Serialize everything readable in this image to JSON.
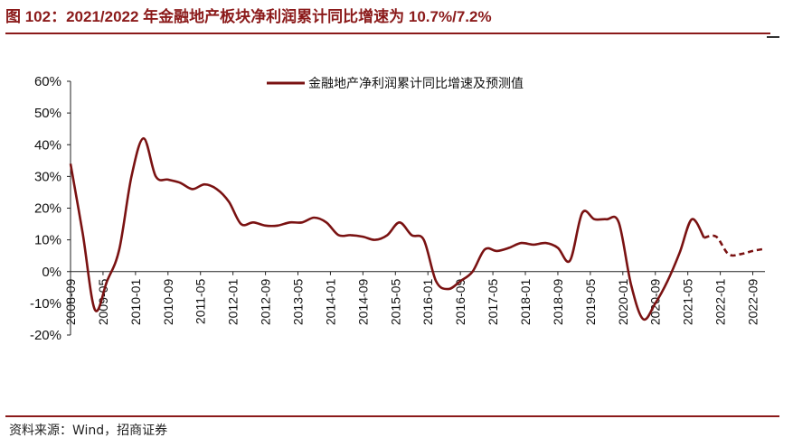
{
  "title": "图 102：2021/2022 年金融地产板块净利润累计同比增速为 10.7%/7.2%",
  "source": "资料来源：Wind，招商证券",
  "colors": {
    "accent": "#8b1a1a",
    "series": "#7a1212"
  },
  "chart_data": {
    "type": "line",
    "title": "",
    "xlabel": "",
    "ylabel": "",
    "ylim": [
      -20,
      60
    ],
    "yticks": [
      "60%",
      "50%",
      "40%",
      "30%",
      "20%",
      "10%",
      "0%",
      "-10%",
      "-20%"
    ],
    "ytick_values": [
      60,
      50,
      40,
      30,
      20,
      10,
      0,
      -10,
      -20
    ],
    "xticks": [
      "2008-09",
      "2009-05",
      "2010-01",
      "2010-09",
      "2011-05",
      "2012-01",
      "2012-09",
      "2013-05",
      "2014-01",
      "2014-09",
      "2015-05",
      "2016-01",
      "2016-09",
      "2017-05",
      "2018-01",
      "2018-09",
      "2019-05",
      "2020-01",
      "2020-09",
      "2021-05",
      "2022-01",
      "2022-09"
    ],
    "legend": "top-center",
    "grid": false,
    "series": [
      {
        "name": "金融地产净利润累计同比增速及预测值",
        "actual": [
          [
            "2008-09",
            34
          ],
          [
            "2008-12",
            12
          ],
          [
            "2009-03",
            -12
          ],
          [
            "2009-06",
            -3
          ],
          [
            "2009-09",
            7
          ],
          [
            "2009-12",
            30
          ],
          [
            "2010-03",
            42
          ],
          [
            "2010-06",
            30
          ],
          [
            "2010-09",
            29
          ],
          [
            "2010-12",
            28
          ],
          [
            "2011-03",
            26
          ],
          [
            "2011-06",
            27.5
          ],
          [
            "2011-09",
            26
          ],
          [
            "2011-12",
            22
          ],
          [
            "2012-03",
            15
          ],
          [
            "2012-06",
            15.5
          ],
          [
            "2012-09",
            14.5
          ],
          [
            "2012-12",
            14.5
          ],
          [
            "2013-03",
            15.5
          ],
          [
            "2013-06",
            15.5
          ],
          [
            "2013-09",
            17
          ],
          [
            "2013-12",
            15.5
          ],
          [
            "2014-03",
            11.5
          ],
          [
            "2014-06",
            11.5
          ],
          [
            "2014-09",
            11
          ],
          [
            "2014-12",
            10
          ],
          [
            "2015-03",
            11.5
          ],
          [
            "2015-06",
            15.5
          ],
          [
            "2015-09",
            11.5
          ],
          [
            "2015-12",
            10
          ],
          [
            "2016-03",
            -3
          ],
          [
            "2016-06",
            -5.5
          ],
          [
            "2016-09",
            -3
          ],
          [
            "2016-12",
            0
          ],
          [
            "2017-03",
            7
          ],
          [
            "2017-06",
            6.5
          ],
          [
            "2017-09",
            7.5
          ],
          [
            "2017-12",
            9
          ],
          [
            "2018-03",
            8.5
          ],
          [
            "2018-06",
            9
          ],
          [
            "2018-09",
            7.5
          ],
          [
            "2018-12",
            3.5
          ],
          [
            "2019-03",
            18.5
          ],
          [
            "2019-06",
            16.5
          ],
          [
            "2019-09",
            16.5
          ],
          [
            "2019-12",
            15.5
          ],
          [
            "2020-03",
            -4
          ],
          [
            "2020-06",
            -15
          ],
          [
            "2020-09",
            -10
          ],
          [
            "2020-12",
            -3
          ],
          [
            "2021-03",
            6
          ],
          [
            "2021-06",
            16.5
          ],
          [
            "2021-09",
            10.7
          ]
        ],
        "forecast": [
          [
            "2021-09",
            10.7
          ],
          [
            "2021-12",
            11
          ],
          [
            "2022-03",
            5.5
          ],
          [
            "2022-06",
            5.5
          ],
          [
            "2022-09",
            6.5
          ],
          [
            "2022-12",
            7.2
          ]
        ]
      }
    ]
  }
}
